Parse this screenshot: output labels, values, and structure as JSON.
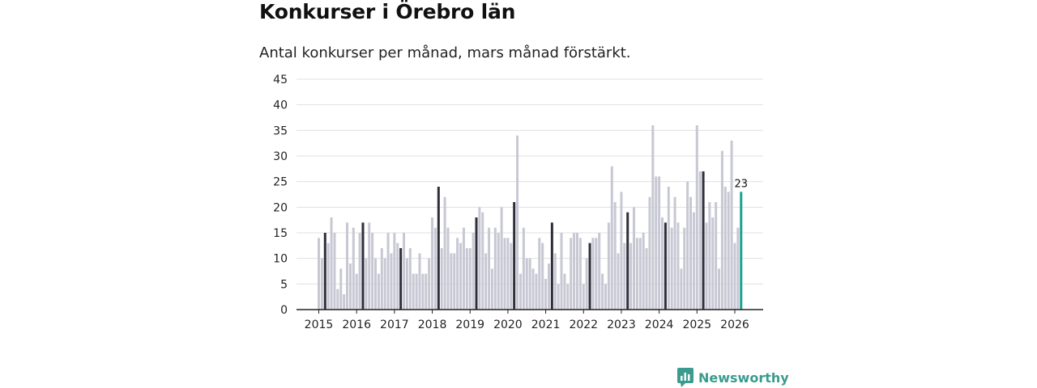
{
  "header": {
    "title": "Konkurser i Örebro län",
    "subtitle": "Antal konkurser per månad, mars månad förstärkt."
  },
  "brand": {
    "name": "Newsworthy",
    "logo_icon": "newsworthy-logo-icon",
    "color": "#3a9c8e"
  },
  "colors": {
    "regular_bar": "#c8c8d4",
    "highlight_bar": "#2f2f3c",
    "latest_bar": "#1aa393",
    "grid": "#e0e0e0",
    "axis": "#222222"
  },
  "chart_data": {
    "type": "bar",
    "title": "Konkurser i Örebro län",
    "subtitle": "Antal konkurser per månad, mars månad förstärkt.",
    "xlabel": "",
    "ylabel": "",
    "ylim": [
      0,
      45
    ],
    "y_ticks": [
      "0",
      "5",
      "10",
      "15",
      "20",
      "25",
      "30",
      "35",
      "40",
      "45"
    ],
    "x_tick_labels": [
      "2015",
      "2016",
      "2017",
      "2018",
      "2019",
      "2020",
      "2021",
      "2022",
      "2023",
      "2024",
      "2025",
      "2026"
    ],
    "grid": true,
    "start": "2015-01",
    "highlight_month": "mars",
    "values": [
      14,
      10,
      15,
      13,
      18,
      15,
      4,
      8,
      3,
      17,
      9,
      16,
      7,
      15,
      17,
      10,
      17,
      15,
      10,
      7,
      12,
      10,
      15,
      11,
      15,
      13,
      12,
      15,
      10,
      12,
      7,
      7,
      11,
      7,
      7,
      10,
      18,
      16,
      24,
      12,
      22,
      16,
      11,
      11,
      14,
      13,
      16,
      12,
      12,
      15,
      18,
      20,
      19,
      11,
      16,
      8,
      16,
      15,
      20,
      14,
      14,
      13,
      21,
      34,
      7,
      16,
      10,
      10,
      8,
      7,
      14,
      13,
      6,
      9,
      17,
      11,
      5,
      15,
      7,
      5,
      14,
      15,
      15,
      14,
      5,
      10,
      13,
      14,
      14,
      15,
      7,
      5,
      17,
      28,
      21,
      11,
      23,
      13,
      19,
      13,
      20,
      14,
      14,
      15,
      12,
      22,
      36,
      26,
      26,
      18,
      17,
      24,
      16,
      22,
      17,
      8,
      16,
      25,
      22,
      19,
      36,
      27,
      27,
      17,
      21,
      18,
      21,
      8,
      31,
      24,
      23,
      33,
      13,
      16,
      23
    ],
    "last_value_label": "23"
  }
}
